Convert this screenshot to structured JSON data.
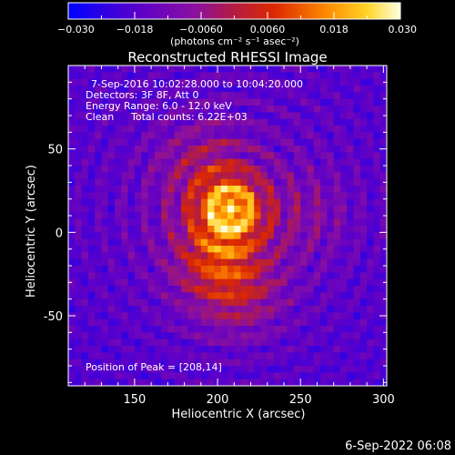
{
  "chart_data": {
    "type": "heatmap",
    "title": "Reconstructed RHESSI Image",
    "xlabel": "Heliocentric X (arcsec)",
    "ylabel": "Heliocentric Y (arcsec)",
    "xlim": [
      110,
      302
    ],
    "ylim": [
      -92,
      100
    ],
    "x_ticks": [
      150,
      200,
      250,
      300
    ],
    "y_ticks": [
      -50,
      0,
      50
    ],
    "colorbar": {
      "label": "(photons cm⁻² s⁻¹ asec⁻²)",
      "range": [
        -0.03,
        0.03
      ],
      "ticks": [
        "−0.030",
        "−0.018",
        "−0.0060",
        "0.0060",
        "0.018",
        "0.030"
      ]
    },
    "annotations": {
      "time_range": "7-Sep-2016 10:02:28.000 to 10:04:20.000",
      "detectors": "Detectors: 3F 8F, Att 0",
      "energy_range": "Energy Range: 6.0 - 12.0 keV",
      "algorithm": "Clean",
      "total_counts": "Total counts: 6.22E+03",
      "peak_position": "Position of Peak = [208,14]"
    },
    "peak": {
      "x": 208,
      "y": 14,
      "value": 0.03
    },
    "sources": [
      {
        "x": 208,
        "y": 14,
        "amplitude": 0.03
      },
      {
        "x": 199,
        "y": -15,
        "amplitude": 0.018
      },
      {
        "x": 213,
        "y": -38,
        "amplitude": 0.012
      },
      {
        "x": 190,
        "y": 40,
        "amplitude": 0.01
      },
      {
        "x": 255,
        "y": 10,
        "amplitude": 0.006
      }
    ],
    "background": -0.02
  },
  "footer": {
    "timestamp": "6-Sep-2022 06:08"
  }
}
